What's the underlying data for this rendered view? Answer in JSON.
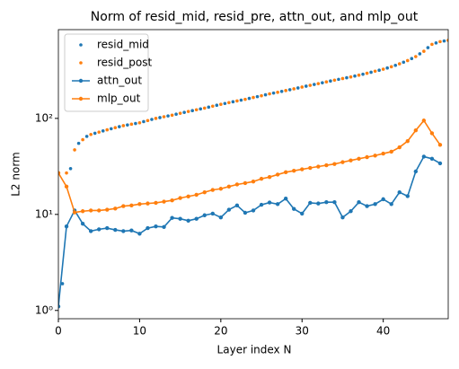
{
  "chart_data": {
    "type": "line",
    "title": "Norm of resid_mid, resid_pre, attn_out, and mlp_out",
    "x_label": "Layer index N",
    "y_label": "L2 norm",
    "xlim": [
      0,
      48
    ],
    "xticks": [
      0,
      10,
      20,
      30,
      40
    ],
    "ylim": [
      0.82,
      840
    ],
    "y_scale": "log",
    "yticks": [
      {
        "value": 1,
        "label": "10⁰"
      },
      {
        "value": 10,
        "label": "10¹"
      },
      {
        "value": 100,
        "label": "10²"
      }
    ],
    "legend": "upper left",
    "series": [
      {
        "name": "resid_mid",
        "color": "#1f77b4",
        "linestyle": "none",
        "x": [
          0.5,
          1.5,
          2.5,
          3.5,
          4.5,
          5.5,
          6.5,
          7.5,
          8.5,
          9.5,
          10.5,
          11.5,
          12.5,
          13.5,
          14.5,
          15.5,
          16.5,
          17.5,
          18.5,
          19.5,
          20.5,
          21.5,
          22.5,
          23.5,
          24.5,
          25.5,
          26.5,
          27.5,
          28.5,
          29.5,
          30.5,
          31.5,
          32.5,
          33.5,
          34.5,
          35.5,
          36.5,
          37.5,
          38.5,
          39.5,
          40.5,
          41.5,
          42.5,
          43.5,
          44.5,
          45.5,
          46.5,
          47.5
        ],
        "values": [
          1.9,
          30,
          55,
          65,
          70,
          74,
          78,
          82,
          85.5,
          88.5,
          92.5,
          97.5,
          102,
          106,
          110.5,
          115.5,
          120.5,
          125.5,
          131,
          137,
          143,
          149,
          155,
          161.5,
          168.5,
          176,
          183.5,
          191,
          199,
          207.5,
          216.5,
          225.5,
          235,
          245,
          255,
          265,
          276,
          288.5,
          302.5,
          317.5,
          335,
          357,
          385,
          420,
          470,
          545,
          610,
          640
        ]
      },
      {
        "name": "resid_post",
        "color": "#ff7f0e",
        "linestyle": "none",
        "x": [
          0,
          1,
          2,
          3,
          4,
          5,
          6,
          7,
          8,
          9,
          10,
          11,
          12,
          13,
          14,
          15,
          16,
          17,
          18,
          19,
          20,
          21,
          22,
          23,
          24,
          25,
          26,
          27,
          28,
          29,
          30,
          31,
          32,
          33,
          34,
          35,
          36,
          37,
          38,
          39,
          40,
          41,
          42,
          43,
          44,
          45,
          46,
          47,
          48
        ],
        "values": [
          27,
          27,
          47,
          60,
          68,
          72,
          76,
          80,
          84,
          87,
          90,
          95,
          100,
          104,
          108,
          113,
          118,
          123,
          128,
          134,
          140,
          146,
          152,
          158,
          165,
          172,
          180,
          187,
          195,
          203,
          212,
          221,
          230,
          240,
          250,
          260,
          270,
          282,
          295,
          310,
          325,
          345,
          370,
          400,
          440,
          500,
          590,
          630,
          650
        ]
      },
      {
        "name": "attn_out",
        "color": "#1f77b4",
        "linestyle": "solid",
        "x": [
          0,
          1,
          2,
          3,
          4,
          5,
          6,
          7,
          8,
          9,
          10,
          11,
          12,
          13,
          14,
          15,
          16,
          17,
          18,
          19,
          20,
          21,
          22,
          23,
          24,
          25,
          26,
          27,
          28,
          29,
          30,
          31,
          32,
          33,
          34,
          35,
          36,
          37,
          38,
          39,
          40,
          41,
          42,
          43,
          44,
          45,
          46,
          47
        ],
        "values": [
          1.1,
          7.5,
          11,
          8,
          6.7,
          7,
          7.2,
          6.9,
          6.7,
          6.8,
          6.3,
          7.2,
          7.5,
          7.4,
          9.2,
          9.0,
          8.6,
          9.0,
          9.8,
          10.2,
          9.3,
          11.2,
          12.4,
          10.4,
          11.0,
          12.6,
          13.3,
          12.8,
          14.6,
          11.4,
          10.2,
          13.2,
          13.0,
          13.4,
          13.4,
          9.3,
          10.8,
          13.4,
          12.2,
          12.8,
          14.4,
          12.8,
          17,
          15.5,
          28,
          40,
          38,
          34
        ]
      },
      {
        "name": "mlp_out",
        "color": "#ff7f0e",
        "linestyle": "solid",
        "x": [
          0,
          1,
          2,
          3,
          4,
          5,
          6,
          7,
          8,
          9,
          10,
          11,
          12,
          13,
          14,
          15,
          16,
          17,
          18,
          19,
          20,
          21,
          22,
          23,
          24,
          25,
          26,
          27,
          28,
          29,
          30,
          31,
          32,
          33,
          34,
          35,
          36,
          37,
          38,
          39,
          40,
          41,
          42,
          43,
          44,
          45,
          46,
          47
        ],
        "values": [
          27,
          19.5,
          10.5,
          10.8,
          11,
          11,
          11.2,
          11.5,
          12.2,
          12.4,
          12.8,
          13,
          13.2,
          13.6,
          14,
          14.8,
          15.4,
          16,
          17,
          18,
          18.5,
          19.5,
          20.5,
          21.2,
          22,
          23.5,
          24.5,
          26,
          27.5,
          28.5,
          29.5,
          30.5,
          31.5,
          32.5,
          33.5,
          35,
          36.5,
          38,
          39.5,
          41,
          43,
          45,
          50,
          58,
          75,
          95,
          70,
          53
        ]
      }
    ]
  }
}
